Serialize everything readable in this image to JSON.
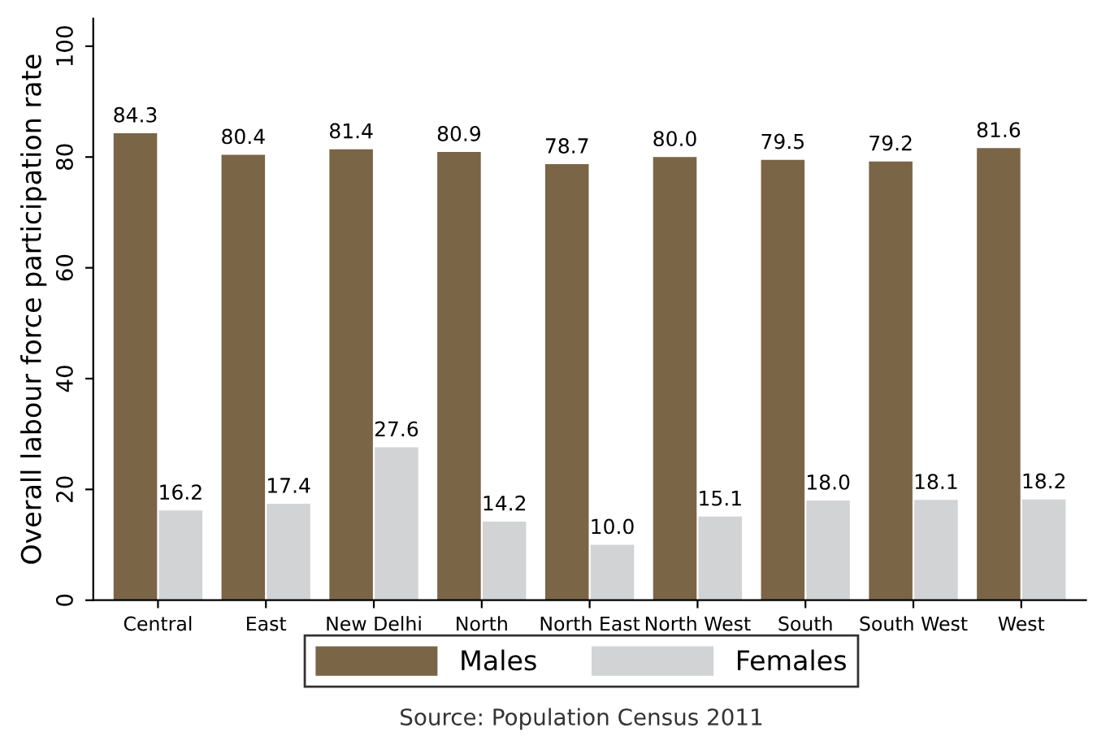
{
  "chart_data": {
    "type": "bar",
    "categories": [
      "Central",
      "East",
      "New Delhi",
      "North",
      "North East",
      "North West",
      "South",
      "South West",
      "West"
    ],
    "ylabel": "Overall labour force participation rate",
    "series": [
      {
        "name": "Males",
        "color": "#7a6547",
        "values": [
          84.3,
          80.4,
          81.4,
          80.9,
          78.7,
          80.0,
          79.5,
          79.2,
          81.6
        ],
        "value_labels": [
          "84.3",
          "80.4",
          "81.4",
          "80.9",
          "78.7",
          "80.0",
          "79.5",
          "79.2",
          "81.6"
        ]
      },
      {
        "name": "Females",
        "color": "#d2d3d5",
        "values": [
          16.2,
          17.4,
          27.6,
          14.2,
          10.0,
          15.1,
          18.0,
          18.1,
          18.2
        ],
        "value_labels": [
          "16.2",
          "17.4",
          "27.6",
          "14.2",
          "10.0",
          "15.1",
          "18.0",
          "18.1",
          "18.2"
        ]
      }
    ],
    "ylim": [
      0,
      105
    ],
    "yticks": [
      0,
      20,
      40,
      60,
      80,
      100
    ],
    "grid": false,
    "legend": "bottom",
    "annotations": [
      "Source: Population Census 2011"
    ]
  }
}
